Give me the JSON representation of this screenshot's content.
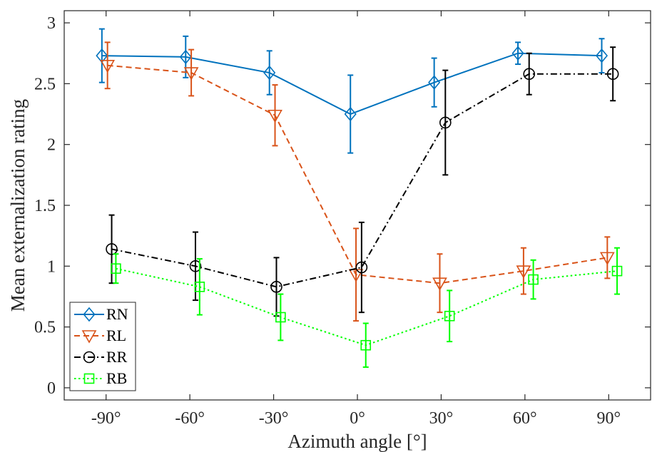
{
  "chart_data": {
    "type": "line",
    "xlabel": "Azimuth angle [°]",
    "ylabel": "Mean externalization rating",
    "xlim": [
      -105,
      105
    ],
    "ylim": [
      -0.1,
      3.1
    ],
    "x_ticks": [
      -90,
      -60,
      -30,
      0,
      30,
      60,
      90
    ],
    "x_tick_labels": [
      "-90°",
      "-60°",
      "-30°",
      "0°",
      "30°",
      "60°",
      "90°"
    ],
    "y_ticks": [
      0,
      0.5,
      1,
      1.5,
      2,
      2.5,
      3
    ],
    "y_tick_labels": [
      "0",
      "0.5",
      "1",
      "1.5",
      "2",
      "2.5",
      "3"
    ],
    "grid": false,
    "legend_position": "bottom-left",
    "series": [
      {
        "name": "RN",
        "color": "#0072BD",
        "marker": "diamond",
        "line_style": "solid",
        "x": [
          -91.5,
          -61.5,
          -31.5,
          -2.5,
          27.5,
          57.5,
          87.5
        ],
        "y": [
          2.73,
          2.72,
          2.59,
          2.25,
          2.51,
          2.75,
          2.73
        ],
        "err": [
          0.22,
          0.17,
          0.18,
          0.32,
          0.2,
          0.09,
          0.14
        ]
      },
      {
        "name": "RL",
        "color": "#D95319",
        "marker": "triangle-down",
        "line_style": "dashed",
        "x": [
          -89.5,
          -59.5,
          -29.5,
          -0.5,
          29.5,
          59.5,
          89.5
        ],
        "y": [
          2.65,
          2.59,
          2.24,
          0.93,
          0.86,
          0.96,
          1.07
        ],
        "err": [
          0.19,
          0.19,
          0.25,
          0.38,
          0.24,
          0.19,
          0.17
        ]
      },
      {
        "name": "RR",
        "color": "#000000",
        "marker": "circle",
        "line_style": "dashdot",
        "x": [
          -88,
          -58,
          -29,
          1.5,
          31.5,
          61.5,
          91.5
        ],
        "y": [
          1.14,
          1.0,
          0.83,
          0.99,
          2.18,
          2.58,
          2.58
        ],
        "err": [
          0.28,
          0.28,
          0.24,
          0.37,
          0.43,
          0.17,
          0.22
        ]
      },
      {
        "name": "RB",
        "color": "#00FF00",
        "marker": "square",
        "line_style": "dotted",
        "x": [
          -86.5,
          -56.5,
          -27.5,
          3,
          33,
          63,
          93
        ],
        "y": [
          0.98,
          0.83,
          0.58,
          0.35,
          0.59,
          0.89,
          0.96
        ],
        "err": [
          0.12,
          0.23,
          0.19,
          0.18,
          0.21,
          0.16,
          0.19
        ]
      }
    ]
  }
}
